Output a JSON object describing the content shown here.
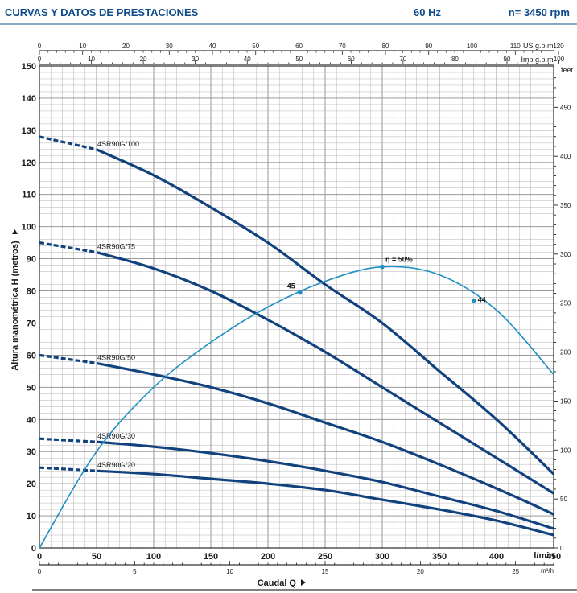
{
  "header": {
    "title": "CURVAS Y DATOS DE PRESTACIONES",
    "freq": "60 Hz",
    "speed": "n= 3450 rpm"
  },
  "chart_data": {
    "type": "line",
    "title": "CURVAS Y DATOS DE PRESTACIONES",
    "xlabel": "Caudal Q",
    "ylabel": "Altura manométrica H (metros)",
    "xlim": [
      0,
      450
    ],
    "ylim": [
      0,
      150
    ],
    "grid": true,
    "colors": {
      "curves": "#12427e",
      "efficiency": "#1f8fc4",
      "grid": "#b3b3b3",
      "title": "#0d4a8a"
    },
    "axes": {
      "bottom": {
        "unit": "l/min",
        "ticks": [
          0,
          50,
          100,
          150,
          200,
          250,
          300,
          350,
          400,
          450
        ]
      },
      "bottom2": {
        "unit": "m³/h",
        "ticks": [
          0,
          5,
          10,
          15,
          20,
          25
        ]
      },
      "top_us": {
        "unit": "US g.p.m.",
        "ticks": [
          0,
          10,
          20,
          30,
          40,
          50,
          60,
          70,
          80,
          90,
          100,
          110,
          120
        ]
      },
      "top_imp": {
        "unit": "Imp g.p.m.",
        "ticks": [
          0,
          10,
          20,
          30,
          40,
          50,
          60,
          70,
          80,
          90,
          100
        ]
      },
      "left": {
        "unit": "m",
        "ticks": [
          0,
          10,
          20,
          30,
          40,
          50,
          60,
          70,
          80,
          90,
          100,
          110,
          120,
          130,
          140,
          150
        ]
      },
      "right": {
        "unit": "feet",
        "ticks": [
          0,
          50,
          100,
          150,
          200,
          250,
          300,
          350,
          400,
          450
        ]
      }
    },
    "series": [
      {
        "name": "4SR90G/100",
        "points": [
          [
            0,
            128
          ],
          [
            50,
            124
          ],
          [
            100,
            116
          ],
          [
            150,
            106
          ],
          [
            200,
            95
          ],
          [
            250,
            82
          ],
          [
            300,
            70
          ],
          [
            350,
            55
          ],
          [
            400,
            40
          ],
          [
            450,
            23
          ]
        ]
      },
      {
        "name": "4SR90G/75",
        "points": [
          [
            0,
            95
          ],
          [
            50,
            92
          ],
          [
            100,
            87
          ],
          [
            150,
            80
          ],
          [
            200,
            71
          ],
          [
            250,
            61
          ],
          [
            300,
            50
          ],
          [
            350,
            39
          ],
          [
            400,
            28
          ],
          [
            450,
            17
          ]
        ]
      },
      {
        "name": "4SR90G/50",
        "points": [
          [
            0,
            60
          ],
          [
            50,
            57.5
          ],
          [
            100,
            54
          ],
          [
            150,
            50
          ],
          [
            200,
            45
          ],
          [
            250,
            39
          ],
          [
            300,
            33
          ],
          [
            350,
            26
          ],
          [
            400,
            18.5
          ],
          [
            450,
            10.5
          ]
        ]
      },
      {
        "name": "4SR90G/30",
        "points": [
          [
            0,
            34
          ],
          [
            50,
            33
          ],
          [
            100,
            31.5
          ],
          [
            150,
            29.5
          ],
          [
            200,
            27
          ],
          [
            250,
            24
          ],
          [
            300,
            20.5
          ],
          [
            350,
            16
          ],
          [
            400,
            11.5
          ],
          [
            450,
            6
          ]
        ]
      },
      {
        "name": "4SR90G/20",
        "points": [
          [
            0,
            25
          ],
          [
            50,
            24
          ],
          [
            100,
            23
          ],
          [
            150,
            21.5
          ],
          [
            200,
            20
          ],
          [
            250,
            18
          ],
          [
            300,
            15
          ],
          [
            350,
            12
          ],
          [
            400,
            8.5
          ],
          [
            450,
            4
          ]
        ]
      }
    ],
    "efficiency": {
      "label": "η = 50%",
      "points": [
        [
          0,
          0
        ],
        [
          50,
          30
        ],
        [
          100,
          50
        ],
        [
          150,
          64
        ],
        [
          200,
          75
        ],
        [
          250,
          83
        ],
        [
          300,
          87.5
        ],
        [
          350,
          85
        ],
        [
          400,
          74
        ],
        [
          450,
          54
        ]
      ],
      "markers": [
        {
          "x": 228,
          "y": 79.5,
          "label": "45"
        },
        {
          "x": 300,
          "y": 87.5,
          "label": ""
        },
        {
          "x": 380,
          "y": 77,
          "label": "44"
        }
      ]
    }
  }
}
